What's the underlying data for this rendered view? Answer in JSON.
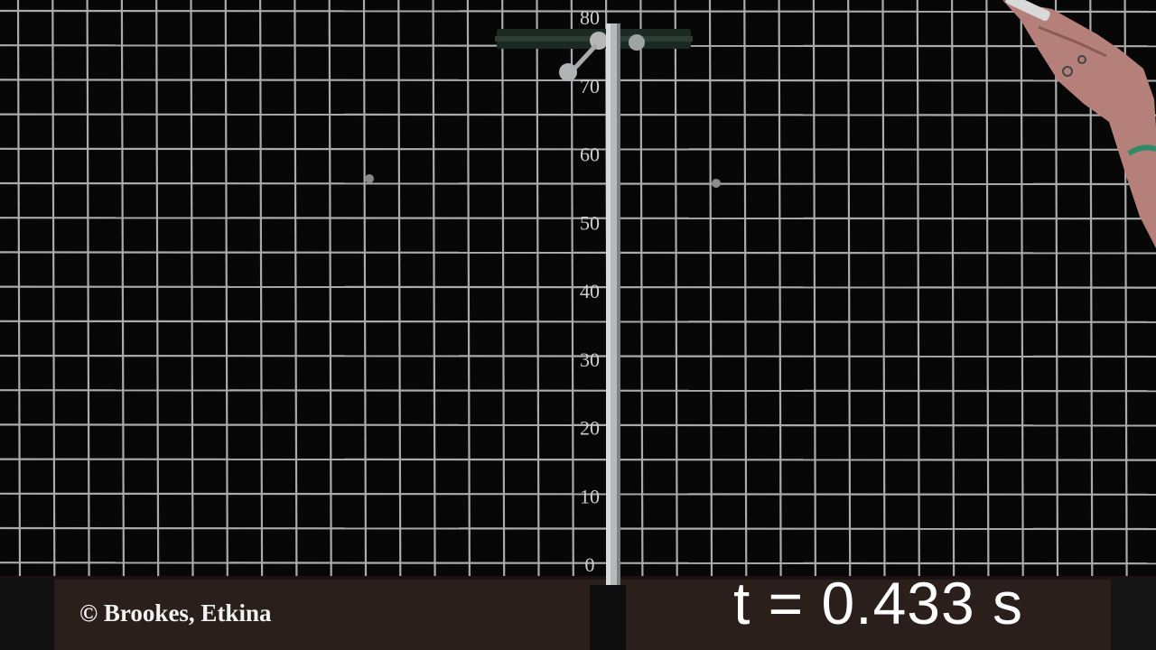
{
  "overlay": {
    "credit": "© Brookes, Etkina",
    "timestamp": "t = 0.433 s"
  },
  "scale": {
    "labels": [
      "80",
      "70",
      "60",
      "50",
      "40",
      "30",
      "20",
      "10",
      "0"
    ]
  },
  "colors": {
    "board": "#070707",
    "grid": "#cfcfcf",
    "floor": "#2b1f1c",
    "pole": "#b9bcbd",
    "text": "#ffffff"
  }
}
